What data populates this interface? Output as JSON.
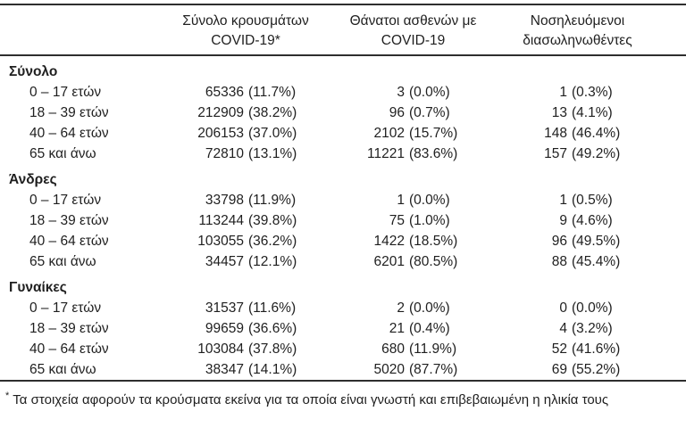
{
  "colors": {
    "text": "#1f1f1f",
    "rule": "#2e2e2e",
    "background": "#ffffff"
  },
  "table": {
    "header": {
      "cases": {
        "line1": "Σύνολο κρουσμάτων",
        "line2": "COVID-19*"
      },
      "deaths": {
        "line1": "Θάνατοι ασθενών με",
        "line2": "COVID-19"
      },
      "intubated": {
        "line1": "Νοσηλευόμενοι",
        "line2": "διασωληνωθέντες"
      }
    },
    "sections": [
      {
        "label": "Σύνολο",
        "rows": [
          {
            "age": "0 – 17 ετών",
            "cases": {
              "n": "65336",
              "pct": "(11.7%)"
            },
            "deaths": {
              "n": "3",
              "pct": "(0.0%)"
            },
            "intubated": {
              "n": "1",
              "pct": "(0.3%)"
            }
          },
          {
            "age": "18 – 39 ετών",
            "cases": {
              "n": "212909",
              "pct": "(38.2%)"
            },
            "deaths": {
              "n": "96",
              "pct": "(0.7%)"
            },
            "intubated": {
              "n": "13",
              "pct": "(4.1%)"
            }
          },
          {
            "age": "40 – 64 ετών",
            "cases": {
              "n": "206153",
              "pct": "(37.0%)"
            },
            "deaths": {
              "n": "2102",
              "pct": "(15.7%)"
            },
            "intubated": {
              "n": "148",
              "pct": "(46.4%)"
            }
          },
          {
            "age": "65 και άνω",
            "cases": {
              "n": "72810",
              "pct": "(13.1%)"
            },
            "deaths": {
              "n": "11221",
              "pct": "(83.6%)"
            },
            "intubated": {
              "n": "157",
              "pct": "(49.2%)"
            }
          }
        ]
      },
      {
        "label": "Άνδρες",
        "rows": [
          {
            "age": "0 – 17 ετών",
            "cases": {
              "n": "33798",
              "pct": "(11.9%)"
            },
            "deaths": {
              "n": "1",
              "pct": "(0.0%)"
            },
            "intubated": {
              "n": "1",
              "pct": "(0.5%)"
            }
          },
          {
            "age": "18 – 39 ετών",
            "cases": {
              "n": "113244",
              "pct": "(39.8%)"
            },
            "deaths": {
              "n": "75",
              "pct": "(1.0%)"
            },
            "intubated": {
              "n": "9",
              "pct": "(4.6%)"
            }
          },
          {
            "age": "40 – 64 ετών",
            "cases": {
              "n": "103055",
              "pct": "(36.2%)"
            },
            "deaths": {
              "n": "1422",
              "pct": "(18.5%)"
            },
            "intubated": {
              "n": "96",
              "pct": "(49.5%)"
            }
          },
          {
            "age": "65 και άνω",
            "cases": {
              "n": "34457",
              "pct": "(12.1%)"
            },
            "deaths": {
              "n": "6201",
              "pct": "(80.5%)"
            },
            "intubated": {
              "n": "88",
              "pct": "(45.4%)"
            }
          }
        ]
      },
      {
        "label": "Γυναίκες",
        "rows": [
          {
            "age": "0 – 17 ετών",
            "cases": {
              "n": "31537",
              "pct": "(11.6%)"
            },
            "deaths": {
              "n": "2",
              "pct": "(0.0%)"
            },
            "intubated": {
              "n": "0",
              "pct": "(0.0%)"
            }
          },
          {
            "age": "18 – 39 ετών",
            "cases": {
              "n": "99659",
              "pct": "(36.6%)"
            },
            "deaths": {
              "n": "21",
              "pct": "(0.4%)"
            },
            "intubated": {
              "n": "4",
              "pct": "(3.2%)"
            }
          },
          {
            "age": "40 – 64 ετών",
            "cases": {
              "n": "103084",
              "pct": "(37.8%)"
            },
            "deaths": {
              "n": "680",
              "pct": "(11.9%)"
            },
            "intubated": {
              "n": "52",
              "pct": "(41.6%)"
            }
          },
          {
            "age": "65 και άνω",
            "cases": {
              "n": "38347",
              "pct": "(14.1%)"
            },
            "deaths": {
              "n": "5020",
              "pct": "(87.7%)"
            },
            "intubated": {
              "n": "69",
              "pct": "(55.2%)"
            }
          }
        ]
      }
    ]
  },
  "footnote": {
    "marker": "*",
    "text": "Τα στοιχεία αφορούν τα κρούσματα εκείνα για τα οποία είναι γνωστή και επιβεβαιωμένη η ηλικία τους"
  }
}
